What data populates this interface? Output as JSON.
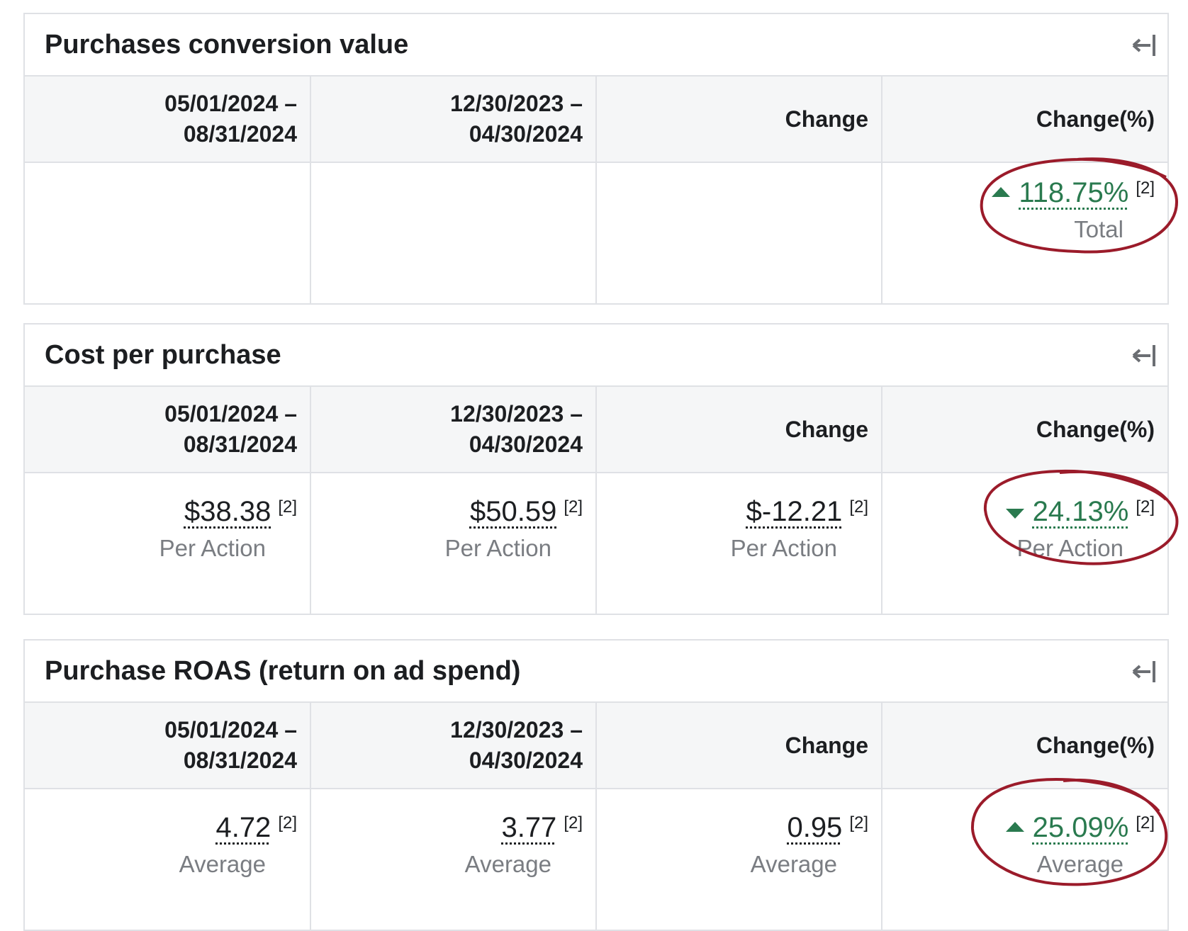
{
  "annotation_color": "#9b1b2a",
  "accent_green": "#2a7a4f",
  "panels": [
    {
      "title": "Purchases conversion value",
      "columns": [
        "05/01/2024 –\n08/31/2024",
        "12/30/2023 –\n04/30/2024",
        "Change",
        "Change(%)"
      ],
      "cells": [
        null,
        null,
        null,
        {
          "value": "118.75%",
          "footnote": "[2]",
          "sub": "Total",
          "trend": "up"
        }
      ]
    },
    {
      "title": "Cost per purchase",
      "columns": [
        "05/01/2024 –\n08/31/2024",
        "12/30/2023 –\n04/30/2024",
        "Change",
        "Change(%)"
      ],
      "cells": [
        {
          "value": "$38.38",
          "footnote": "[2]",
          "sub": "Per Action"
        },
        {
          "value": "$50.59",
          "footnote": "[2]",
          "sub": "Per Action"
        },
        {
          "value": "$-12.21",
          "footnote": "[2]",
          "sub": "Per Action"
        },
        {
          "value": "24.13%",
          "footnote": "[2]",
          "sub": "Per Action",
          "trend": "down"
        }
      ]
    },
    {
      "title": "Purchase ROAS (return on ad spend)",
      "columns": [
        "05/01/2024 –\n08/31/2024",
        "12/30/2023 –\n04/30/2024",
        "Change",
        "Change(%)"
      ],
      "cells": [
        {
          "value": "4.72",
          "footnote": "[2]",
          "sub": "Average"
        },
        {
          "value": "3.77",
          "footnote": "[2]",
          "sub": "Average"
        },
        {
          "value": "0.95",
          "footnote": "[2]",
          "sub": "Average"
        },
        {
          "value": "25.09%",
          "footnote": "[2]",
          "sub": "Average",
          "trend": "up"
        }
      ]
    }
  ]
}
